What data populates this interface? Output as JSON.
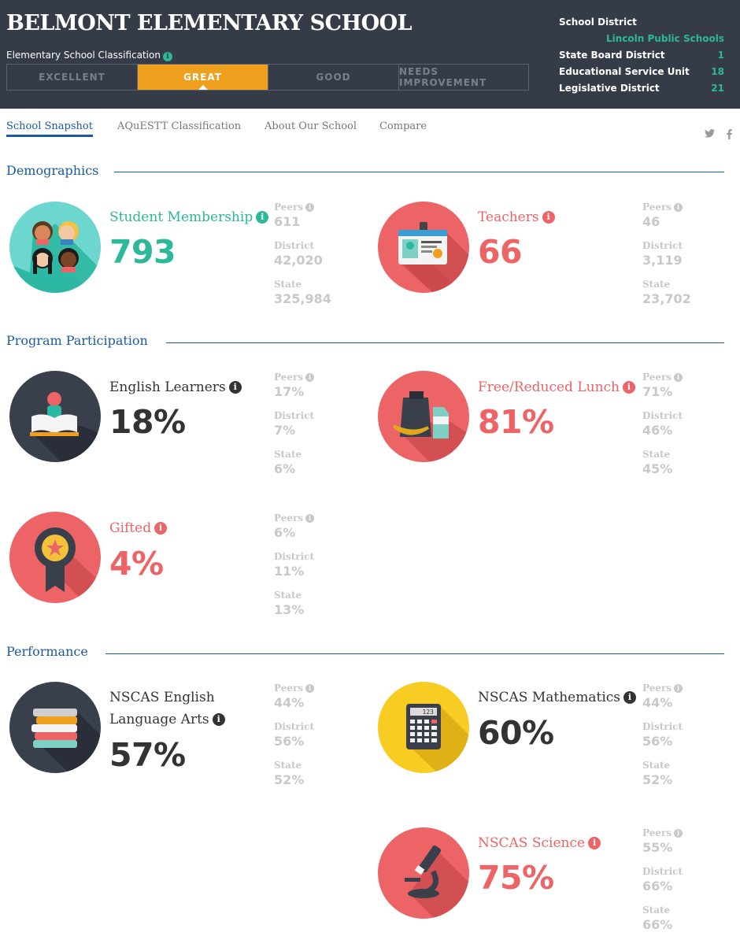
{
  "header": {
    "school_name": "BELMONT ELEMENTARY SCHOOL",
    "classification_label": "Elementary School Classification",
    "classification_segments": [
      "EXCELLENT",
      "GREAT",
      "GOOD",
      "NEEDS IMPROVEMENT"
    ],
    "classification_selected": "GREAT",
    "district_info": {
      "school_district_label": "School District",
      "school_district_value": "Lincoln Public Schools",
      "state_board_label": "State Board District",
      "state_board_value": "1",
      "esu_label": "Educational Service Unit",
      "esu_value": "18",
      "legislative_label": "Legislative District",
      "legislative_value": "21"
    }
  },
  "nav": {
    "tabs": [
      "School Snapshot",
      "AQuESTT Classification",
      "About Our School",
      "Compare"
    ],
    "active_tab": "School Snapshot",
    "social_icons": [
      "twitter-icon",
      "facebook-icon"
    ]
  },
  "sections": {
    "demographics": "Demographics",
    "program": "Program Participation",
    "performance": "Performance"
  },
  "compare_labels": {
    "peers": "Peers",
    "district": "District",
    "state": "State"
  },
  "metrics": {
    "student_membership": {
      "label": "Student Membership",
      "value": "793",
      "peers": "611",
      "district": "42,020",
      "state": "325,984",
      "color": "#2db89a",
      "icon": "students-icon"
    },
    "teachers": {
      "label": "Teachers",
      "value": "66",
      "peers": "46",
      "district": "3,119",
      "state": "23,702",
      "color": "#ec6466",
      "icon": "id-badge-icon"
    },
    "english_learners": {
      "label": "English Learners",
      "value": "18%",
      "peers": "17%",
      "district": "7%",
      "state": "6%",
      "color": "#333333",
      "icon": "reader-icon"
    },
    "free_reduced_lunch": {
      "label": "Free/Reduced Lunch",
      "value": "81%",
      "peers": "71%",
      "district": "46%",
      "state": "45%",
      "color": "#ec6466",
      "icon": "lunch-icon"
    },
    "gifted": {
      "label": "Gifted",
      "value": "4%",
      "peers": "6%",
      "district": "11%",
      "state": "13%",
      "color": "#ec6466",
      "icon": "award-icon"
    },
    "nscas_ela": {
      "label_line1": "NSCAS English",
      "label_line2": "Language Arts",
      "value": "57%",
      "peers": "44%",
      "district": "56%",
      "state": "52%",
      "color": "#333333",
      "icon": "books-icon"
    },
    "nscas_math": {
      "label": "NSCAS Mathematics",
      "value": "60%",
      "peers": "44%",
      "district": "56%",
      "state": "52%",
      "color": "#333333",
      "icon": "calculator-icon",
      "calculator_display": "123"
    },
    "nscas_science": {
      "label": "NSCAS Science",
      "value": "75%",
      "peers": "55%",
      "district": "66%",
      "state": "66%",
      "color": "#ec6466",
      "icon": "microscope-icon"
    }
  }
}
